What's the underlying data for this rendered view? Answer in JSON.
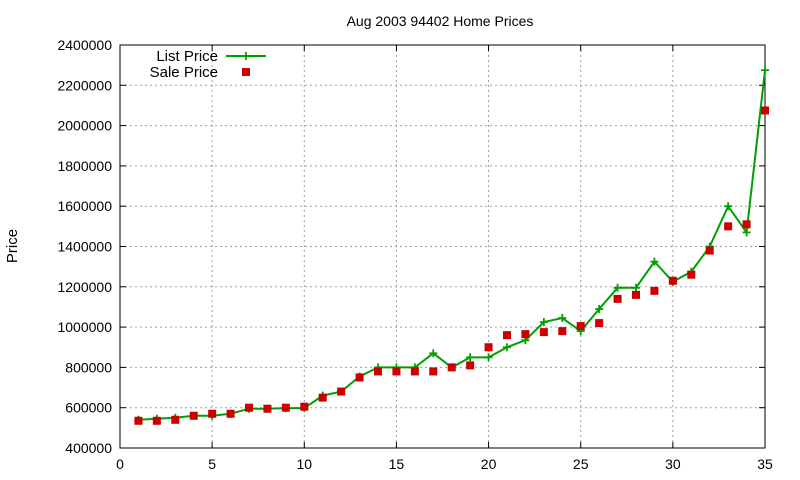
{
  "chart_data": {
    "type": "line",
    "title": "Aug 2003 94402 Home Prices",
    "xlabel": "",
    "ylabel": "Price",
    "xlim": [
      0,
      35
    ],
    "ylim": [
      400000,
      2400000
    ],
    "xticks": [
      0,
      5,
      10,
      15,
      20,
      25,
      30,
      35
    ],
    "yticks": [
      400000,
      600000,
      800000,
      1000000,
      1200000,
      1400000,
      1600000,
      1800000,
      2000000,
      2200000,
      2400000
    ],
    "grid": true,
    "legend_position": "top-left",
    "x": [
      1,
      2,
      3,
      4,
      5,
      6,
      7,
      8,
      9,
      10,
      11,
      12,
      13,
      14,
      15,
      16,
      17,
      18,
      19,
      20,
      21,
      22,
      23,
      24,
      25,
      26,
      27,
      28,
      29,
      30,
      31,
      32,
      33,
      34,
      35
    ],
    "series": [
      {
        "name": "List Price",
        "style": "line-plus",
        "color": "#00a000",
        "values": [
          540000,
          545000,
          550000,
          560000,
          560000,
          570000,
          595000,
          595000,
          598000,
          598000,
          660000,
          680000,
          755000,
          800000,
          800000,
          800000,
          870000,
          800000,
          850000,
          850000,
          900000,
          935000,
          1025000,
          1045000,
          980000,
          1090000,
          1195000,
          1195000,
          1325000,
          1225000,
          1275000,
          1400000,
          1600000,
          1470000,
          2275000
        ]
      },
      {
        "name": "Sale Price",
        "style": "square",
        "color": "#cc0000",
        "values": [
          535000,
          535000,
          540000,
          560000,
          570000,
          570000,
          600000,
          595000,
          600000,
          605000,
          650000,
          680000,
          750000,
          780000,
          780000,
          780000,
          780000,
          800000,
          810000,
          900000,
          960000,
          965000,
          975000,
          980000,
          1005000,
          1020000,
          1140000,
          1160000,
          1180000,
          1230000,
          1260000,
          1380000,
          1500000,
          1510000,
          2075000
        ]
      }
    ]
  },
  "colors": {
    "list_price": "#00a000",
    "sale_price": "#cc0000"
  }
}
